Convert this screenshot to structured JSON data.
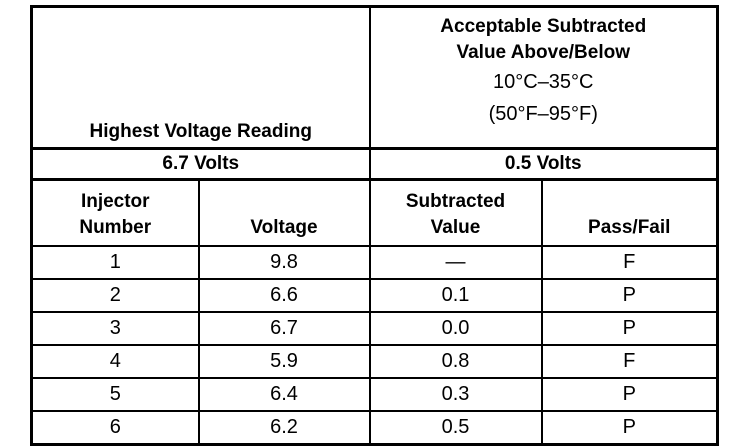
{
  "header": {
    "left": "Highest Voltage Reading",
    "right_title_lines": [
      "Acceptable Subtracted",
      "Value Above/Below"
    ],
    "right_range_lines": [
      "10°C–35°C",
      "(50°F–95°F)"
    ]
  },
  "summary": [
    "6.7 Volts",
    "0.5 Volts"
  ],
  "table": {
    "columns": [
      [
        "Injector",
        "Number"
      ],
      [
        "Voltage"
      ],
      [
        "Subtracted",
        "Value"
      ],
      [
        "Pass/Fail"
      ]
    ],
    "rows": [
      [
        "1",
        "9.8",
        "—",
        "F"
      ],
      [
        "2",
        "6.6",
        "0.1",
        "P"
      ],
      [
        "3",
        "6.7",
        "0.0",
        "P"
      ],
      [
        "4",
        "5.9",
        "0.8",
        "F"
      ],
      [
        "5",
        "6.4",
        "0.3",
        "P"
      ],
      [
        "6",
        "6.2",
        "0.5",
        "P"
      ]
    ]
  }
}
